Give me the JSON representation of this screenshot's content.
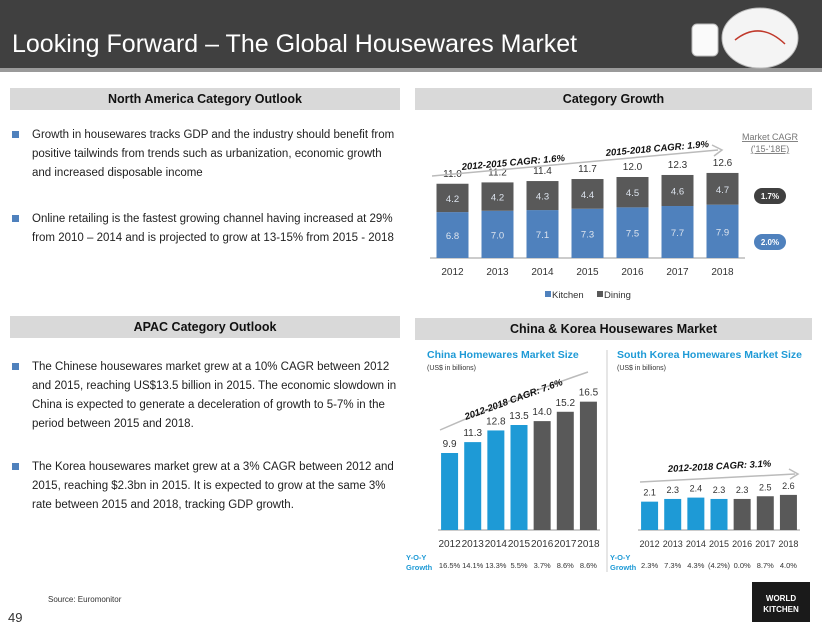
{
  "header": {
    "title": "Looking Forward – The Global Housewares Market"
  },
  "north_america": {
    "title": "North America Category Outlook",
    "bullets": [
      " Growth in housewares tracks GDP and the industry should benefit from positive tailwinds from trends such as urbanization, economic growth and increased disposable income",
      "Online retailing is the fastest growing channel having increased at 29% from 2010 – 2014 and is projected to grow at 13-15% from 2015 - 2018"
    ]
  },
  "apac": {
    "title": "APAC Category Outlook",
    "bullets": [
      "The Chinese housewares market grew at a 10% CAGR between 2012 and 2015, reaching US$13.5 billion in 2015. The economic slowdown in China is expected to generate a deceleration of growth to 5-7% in the period between 2015 and 2018.",
      "The Korea housewares market grew at a 3% CAGR between 2012 and 2015, reaching $2.3bn in 2015. It is expected to grow at the same 3% rate between 2015 and 2018, tracking GDP growth."
    ]
  },
  "category_growth_title": "Category Growth",
  "china_korea_title": "China & Korea Housewares Market",
  "chart_data": [
    {
      "type": "bar",
      "stacked": true,
      "categories": [
        "2012",
        "2013",
        "2014",
        "2015",
        "2016",
        "2017",
        "2018"
      ],
      "series": [
        {
          "name": "Kitchen",
          "color": "#4f81bd",
          "values": [
            6.8,
            7.0,
            7.1,
            7.3,
            7.5,
            7.7,
            7.9
          ],
          "value_labels": [
            "6.8",
            "7.0",
            "7.1",
            "7.3",
            "7.5",
            "7.7",
            "7.9"
          ]
        },
        {
          "name": "Dining",
          "color": "#595959",
          "values": [
            4.2,
            4.2,
            4.3,
            4.4,
            4.5,
            4.6,
            4.7
          ]
        }
      ],
      "total_labels": [
        "11.0",
        "11.2",
        "11.4",
        "11.7",
        "12.0",
        "12.3",
        "12.6"
      ],
      "ylim": [
        0,
        16
      ],
      "legend": "bottom",
      "annotations": [
        "2012-2015 CAGR: 1.6%",
        "2015-2018 CAGR: 1.9%"
      ],
      "market_cagr_label": [
        "Market CAGR",
        "('15-'18E)"
      ],
      "market_cagr": [
        {
          "label": "1.7%",
          "color": "#404040"
        },
        {
          "label": "2.0%",
          "color": "#4f81bd"
        }
      ]
    },
    {
      "type": "bar",
      "title": "China Homewares Market Size",
      "subtitle": "(US$ in billions)",
      "categories": [
        "2012",
        "2013",
        "2014",
        "2015",
        "2016",
        "2017",
        "2018"
      ],
      "values": [
        9.9,
        11.3,
        12.8,
        13.5,
        14.0,
        15.2,
        16.5
      ],
      "value_labels": [
        "9.9",
        "11.3",
        "12.8",
        "13.5",
        "14.0",
        "15.2",
        "16.5"
      ],
      "colors": [
        "#1e9ad6",
        "#1e9ad6",
        "#1e9ad6",
        "#1e9ad6",
        "#595959",
        "#595959",
        "#595959"
      ],
      "ylim": [
        0,
        18
      ],
      "annotations": [
        "2012-2018 CAGR: 7.6%"
      ],
      "growth_title": [
        "Y-O-Y",
        "Growth"
      ],
      "growth_labels": [
        "16.5%",
        "14.1%",
        "13.3%",
        "5.5%",
        "3.7%",
        "8.6%",
        "8.6%"
      ]
    },
    {
      "type": "bar",
      "title": "South Korea Homewares Market Size",
      "subtitle": "(US$ in billions)",
      "categories": [
        "2012",
        "2013",
        "2014",
        "2015",
        "2016",
        "2017",
        "2018"
      ],
      "values": [
        2.1,
        2.3,
        2.4,
        2.3,
        2.3,
        2.5,
        2.6
      ],
      "colors": [
        "#1e9ad6",
        "#1e9ad6",
        "#1e9ad6",
        "#1e9ad6",
        "#595959",
        "#595959",
        "#595959"
      ],
      "ylim": [
        0,
        10
      ],
      "annotations": [
        "2012-2018 CAGR: 3.1%"
      ],
      "growth_title": [
        "Y-O-Y",
        "Growth"
      ],
      "growth_labels": [
        "2.3%",
        "7.3%",
        "4.3%",
        "(4.2%)",
        "0.0%",
        "8.7%",
        "4.0%"
      ]
    }
  ],
  "source": "Source:     Euromonitor",
  "page_number": "49",
  "logo": [
    "WORLD",
    "KITCHEN"
  ]
}
